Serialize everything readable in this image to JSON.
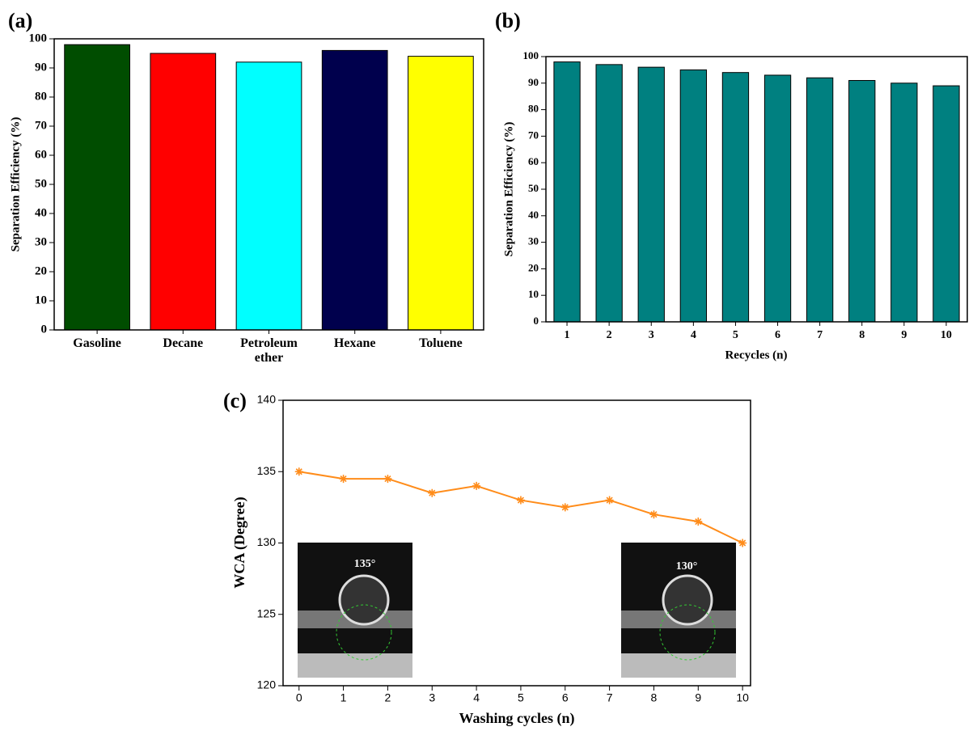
{
  "chart_data": [
    {
      "type": "bar",
      "panel_label": "(a)",
      "ylabel": "Separation Efficiency (%)",
      "categories": [
        "Gasoline",
        "Decane",
        "Petroleum ether",
        "Hexane",
        "Toluene"
      ],
      "values": [
        98,
        95,
        92,
        96,
        94
      ],
      "colors": [
        "#004d00",
        "#ff0000",
        "#00ffff",
        "#00004d",
        "#ffff00"
      ],
      "ylim": [
        0,
        100
      ],
      "yticks": [
        0,
        10,
        20,
        30,
        40,
        50,
        60,
        70,
        80,
        90,
        100
      ]
    },
    {
      "type": "bar",
      "panel_label": "(b)",
      "ylabel": "Separation Efficiency (%)",
      "xlabel": "Recycles (n)",
      "categories": [
        "1",
        "2",
        "3",
        "4",
        "5",
        "6",
        "7",
        "8",
        "9",
        "10"
      ],
      "values": [
        98,
        97,
        96,
        95,
        94,
        93,
        92,
        91,
        90,
        89
      ],
      "color": "#008080",
      "ylim": [
        0,
        100
      ],
      "yticks": [
        0,
        10,
        20,
        30,
        40,
        50,
        60,
        70,
        80,
        90,
        100
      ]
    },
    {
      "type": "line",
      "panel_label": "(c)",
      "ylabel": "WCA (Degree)",
      "xlabel": "Washing cycles (n)",
      "x": [
        0,
        1,
        2,
        3,
        4,
        5,
        6,
        7,
        8,
        9,
        10
      ],
      "values": [
        135,
        134.5,
        134.5,
        133.5,
        134,
        133,
        132.5,
        133,
        132,
        131.5,
        130
      ],
      "color": "#ff8c1a",
      "xlim": [
        -0.36,
        10.18
      ],
      "xticks": [
        0,
        1,
        2,
        3,
        4,
        5,
        6,
        7,
        8,
        9,
        10
      ],
      "ylim": [
        120,
        140
      ],
      "yticks": [
        120,
        125,
        130,
        135,
        140
      ],
      "annotations": [
        "135°",
        "130°"
      ]
    }
  ]
}
